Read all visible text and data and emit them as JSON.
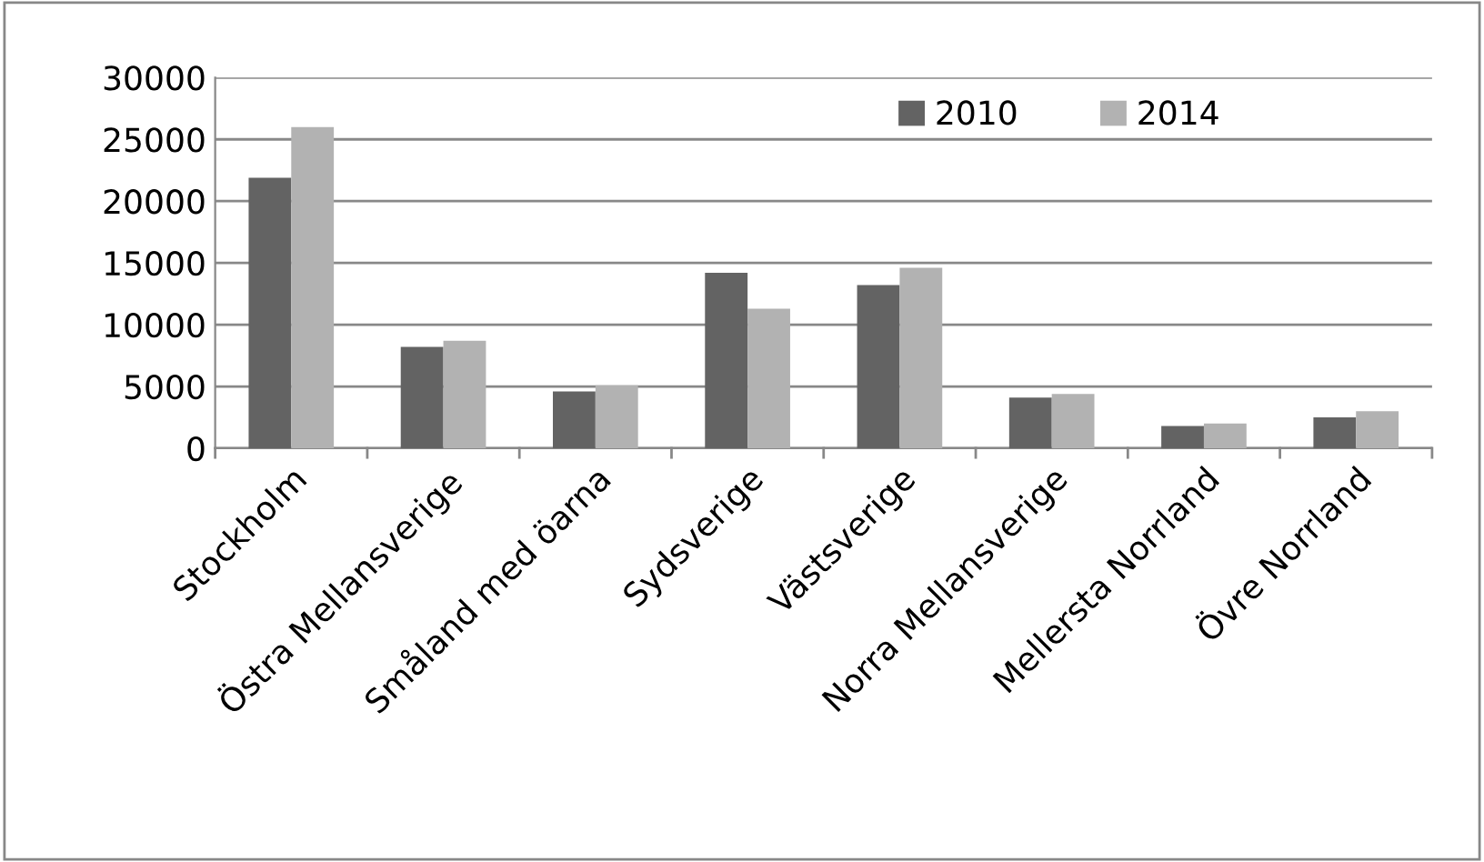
{
  "chart_data": {
    "type": "bar",
    "categories": [
      "Stockholm",
      "Östra Mellansverige",
      "Småland med öarna",
      "Sydsverige",
      "Västsverige",
      "Norra Mellansverige",
      "Mellersta Norrland",
      "Övre Norrland"
    ],
    "series": [
      {
        "name": "2010",
        "color": "#636363",
        "values": [
          21900,
          8200,
          4600,
          14200,
          13200,
          4100,
          1800,
          2500
        ]
      },
      {
        "name": "2014",
        "color": "#b2b2b2",
        "values": [
          26000,
          8700,
          5100,
          11300,
          14600,
          4400,
          2000,
          3000
        ]
      }
    ],
    "ylim": [
      0,
      30000
    ],
    "yticks": [
      0,
      5000,
      10000,
      15000,
      20000,
      25000,
      30000
    ],
    "grid": "y",
    "legend": "top right"
  }
}
